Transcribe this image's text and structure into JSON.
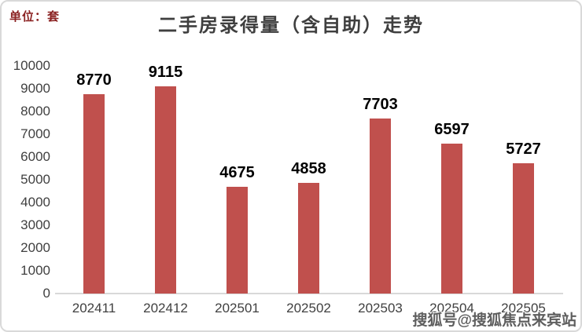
{
  "page": {
    "unit_label": "单位：套",
    "title": "二手房录得量（含自助）走势",
    "watermark": "搜狐号@搜狐焦点来宾站"
  },
  "colors": {
    "bar": "#c0504d",
    "title_text": "#3f3f3f",
    "unit_label_text": "#8b2222",
    "axis_line": "#d9d9d9",
    "tick_text": "#404040",
    "value_label_text": "#000000",
    "watermark_text": "#4d4d4d",
    "background": "#ffffff"
  },
  "chart_data": {
    "type": "bar",
    "title": "二手房录得量（含自助）走势",
    "categories": [
      "202411",
      "202412",
      "202501",
      "202502",
      "202503",
      "202504",
      "202505"
    ],
    "values": [
      8770,
      9115,
      4675,
      4858,
      7703,
      6597,
      5727
    ],
    "value_labels_shown": true,
    "xlabel": "",
    "ylabel": "单位：套",
    "ylim": [
      0,
      10000
    ],
    "y_ticks": [
      0,
      1000,
      2000,
      3000,
      4000,
      5000,
      6000,
      7000,
      8000,
      9000,
      10000
    ],
    "grid": false,
    "legend": "none"
  }
}
